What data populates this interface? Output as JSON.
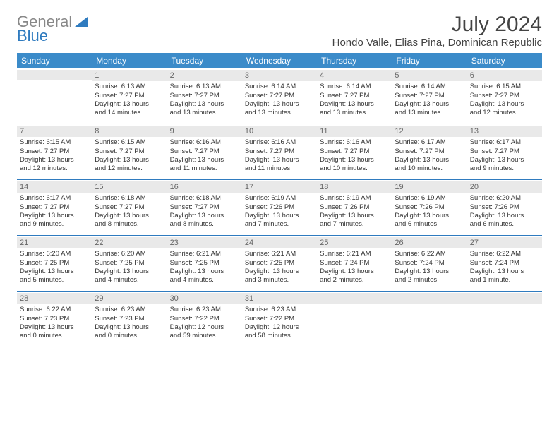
{
  "logo": {
    "text1": "General",
    "text2": "Blue"
  },
  "title": "July 2024",
  "location": "Hondo Valle, Elias Pina, Dominican Republic",
  "colors": {
    "header_bg": "#3b8bc9",
    "header_text": "#ffffff",
    "daynum_bg": "#e9e9e9",
    "daynum_text": "#666666",
    "rule": "#2f7bbf",
    "body_text": "#333333",
    "logo_gray": "#888888",
    "logo_blue": "#2f7bbf"
  },
  "typography": {
    "title_fontsize": 30,
    "location_fontsize": 15,
    "dayheader_fontsize": 12,
    "daynum_fontsize": 11,
    "cell_fontsize": 9.5
  },
  "day_names": [
    "Sunday",
    "Monday",
    "Tuesday",
    "Wednesday",
    "Thursday",
    "Friday",
    "Saturday"
  ],
  "weeks": [
    [
      {
        "empty": true
      },
      {
        "day": "1",
        "sunrise": "Sunrise: 6:13 AM",
        "sunset": "Sunset: 7:27 PM",
        "daylight1": "Daylight: 13 hours",
        "daylight2": "and 14 minutes."
      },
      {
        "day": "2",
        "sunrise": "Sunrise: 6:13 AM",
        "sunset": "Sunset: 7:27 PM",
        "daylight1": "Daylight: 13 hours",
        "daylight2": "and 13 minutes."
      },
      {
        "day": "3",
        "sunrise": "Sunrise: 6:14 AM",
        "sunset": "Sunset: 7:27 PM",
        "daylight1": "Daylight: 13 hours",
        "daylight2": "and 13 minutes."
      },
      {
        "day": "4",
        "sunrise": "Sunrise: 6:14 AM",
        "sunset": "Sunset: 7:27 PM",
        "daylight1": "Daylight: 13 hours",
        "daylight2": "and 13 minutes."
      },
      {
        "day": "5",
        "sunrise": "Sunrise: 6:14 AM",
        "sunset": "Sunset: 7:27 PM",
        "daylight1": "Daylight: 13 hours",
        "daylight2": "and 13 minutes."
      },
      {
        "day": "6",
        "sunrise": "Sunrise: 6:15 AM",
        "sunset": "Sunset: 7:27 PM",
        "daylight1": "Daylight: 13 hours",
        "daylight2": "and 12 minutes."
      }
    ],
    [
      {
        "day": "7",
        "sunrise": "Sunrise: 6:15 AM",
        "sunset": "Sunset: 7:27 PM",
        "daylight1": "Daylight: 13 hours",
        "daylight2": "and 12 minutes."
      },
      {
        "day": "8",
        "sunrise": "Sunrise: 6:15 AM",
        "sunset": "Sunset: 7:27 PM",
        "daylight1": "Daylight: 13 hours",
        "daylight2": "and 12 minutes."
      },
      {
        "day": "9",
        "sunrise": "Sunrise: 6:16 AM",
        "sunset": "Sunset: 7:27 PM",
        "daylight1": "Daylight: 13 hours",
        "daylight2": "and 11 minutes."
      },
      {
        "day": "10",
        "sunrise": "Sunrise: 6:16 AM",
        "sunset": "Sunset: 7:27 PM",
        "daylight1": "Daylight: 13 hours",
        "daylight2": "and 11 minutes."
      },
      {
        "day": "11",
        "sunrise": "Sunrise: 6:16 AM",
        "sunset": "Sunset: 7:27 PM",
        "daylight1": "Daylight: 13 hours",
        "daylight2": "and 10 minutes."
      },
      {
        "day": "12",
        "sunrise": "Sunrise: 6:17 AM",
        "sunset": "Sunset: 7:27 PM",
        "daylight1": "Daylight: 13 hours",
        "daylight2": "and 10 minutes."
      },
      {
        "day": "13",
        "sunrise": "Sunrise: 6:17 AM",
        "sunset": "Sunset: 7:27 PM",
        "daylight1": "Daylight: 13 hours",
        "daylight2": "and 9 minutes."
      }
    ],
    [
      {
        "day": "14",
        "sunrise": "Sunrise: 6:17 AM",
        "sunset": "Sunset: 7:27 PM",
        "daylight1": "Daylight: 13 hours",
        "daylight2": "and 9 minutes."
      },
      {
        "day": "15",
        "sunrise": "Sunrise: 6:18 AM",
        "sunset": "Sunset: 7:27 PM",
        "daylight1": "Daylight: 13 hours",
        "daylight2": "and 8 minutes."
      },
      {
        "day": "16",
        "sunrise": "Sunrise: 6:18 AM",
        "sunset": "Sunset: 7:27 PM",
        "daylight1": "Daylight: 13 hours",
        "daylight2": "and 8 minutes."
      },
      {
        "day": "17",
        "sunrise": "Sunrise: 6:19 AM",
        "sunset": "Sunset: 7:26 PM",
        "daylight1": "Daylight: 13 hours",
        "daylight2": "and 7 minutes."
      },
      {
        "day": "18",
        "sunrise": "Sunrise: 6:19 AM",
        "sunset": "Sunset: 7:26 PM",
        "daylight1": "Daylight: 13 hours",
        "daylight2": "and 7 minutes."
      },
      {
        "day": "19",
        "sunrise": "Sunrise: 6:19 AM",
        "sunset": "Sunset: 7:26 PM",
        "daylight1": "Daylight: 13 hours",
        "daylight2": "and 6 minutes."
      },
      {
        "day": "20",
        "sunrise": "Sunrise: 6:20 AM",
        "sunset": "Sunset: 7:26 PM",
        "daylight1": "Daylight: 13 hours",
        "daylight2": "and 6 minutes."
      }
    ],
    [
      {
        "day": "21",
        "sunrise": "Sunrise: 6:20 AM",
        "sunset": "Sunset: 7:25 PM",
        "daylight1": "Daylight: 13 hours",
        "daylight2": "and 5 minutes."
      },
      {
        "day": "22",
        "sunrise": "Sunrise: 6:20 AM",
        "sunset": "Sunset: 7:25 PM",
        "daylight1": "Daylight: 13 hours",
        "daylight2": "and 4 minutes."
      },
      {
        "day": "23",
        "sunrise": "Sunrise: 6:21 AM",
        "sunset": "Sunset: 7:25 PM",
        "daylight1": "Daylight: 13 hours",
        "daylight2": "and 4 minutes."
      },
      {
        "day": "24",
        "sunrise": "Sunrise: 6:21 AM",
        "sunset": "Sunset: 7:25 PM",
        "daylight1": "Daylight: 13 hours",
        "daylight2": "and 3 minutes."
      },
      {
        "day": "25",
        "sunrise": "Sunrise: 6:21 AM",
        "sunset": "Sunset: 7:24 PM",
        "daylight1": "Daylight: 13 hours",
        "daylight2": "and 2 minutes."
      },
      {
        "day": "26",
        "sunrise": "Sunrise: 6:22 AM",
        "sunset": "Sunset: 7:24 PM",
        "daylight1": "Daylight: 13 hours",
        "daylight2": "and 2 minutes."
      },
      {
        "day": "27",
        "sunrise": "Sunrise: 6:22 AM",
        "sunset": "Sunset: 7:24 PM",
        "daylight1": "Daylight: 13 hours",
        "daylight2": "and 1 minute."
      }
    ],
    [
      {
        "day": "28",
        "sunrise": "Sunrise: 6:22 AM",
        "sunset": "Sunset: 7:23 PM",
        "daylight1": "Daylight: 13 hours",
        "daylight2": "and 0 minutes."
      },
      {
        "day": "29",
        "sunrise": "Sunrise: 6:23 AM",
        "sunset": "Sunset: 7:23 PM",
        "daylight1": "Daylight: 13 hours",
        "daylight2": "and 0 minutes."
      },
      {
        "day": "30",
        "sunrise": "Sunrise: 6:23 AM",
        "sunset": "Sunset: 7:22 PM",
        "daylight1": "Daylight: 12 hours",
        "daylight2": "and 59 minutes."
      },
      {
        "day": "31",
        "sunrise": "Sunrise: 6:23 AM",
        "sunset": "Sunset: 7:22 PM",
        "daylight1": "Daylight: 12 hours",
        "daylight2": "and 58 minutes."
      },
      {
        "empty": true
      },
      {
        "empty": true
      },
      {
        "empty": true
      }
    ]
  ]
}
